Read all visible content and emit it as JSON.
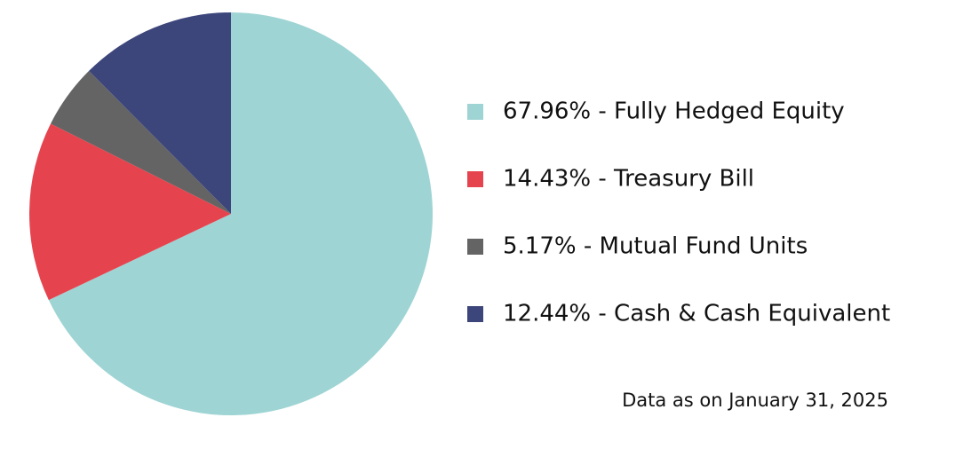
{
  "chart_data": {
    "type": "pie",
    "categories": [
      "67.96% - Fully Hedged Equity",
      "14.43% - Treasury Bill",
      "5.17% - Mutual Fund Units",
      "12.44% - Cash & Cash Equivalent"
    ],
    "values": [
      67.96,
      14.43,
      5.17,
      12.44
    ],
    "colors": [
      "#9fd4d4",
      "#e5444f",
      "#646464",
      "#3d467b"
    ],
    "legend": "right",
    "annotation": "Data as on January 31, 2025"
  }
}
